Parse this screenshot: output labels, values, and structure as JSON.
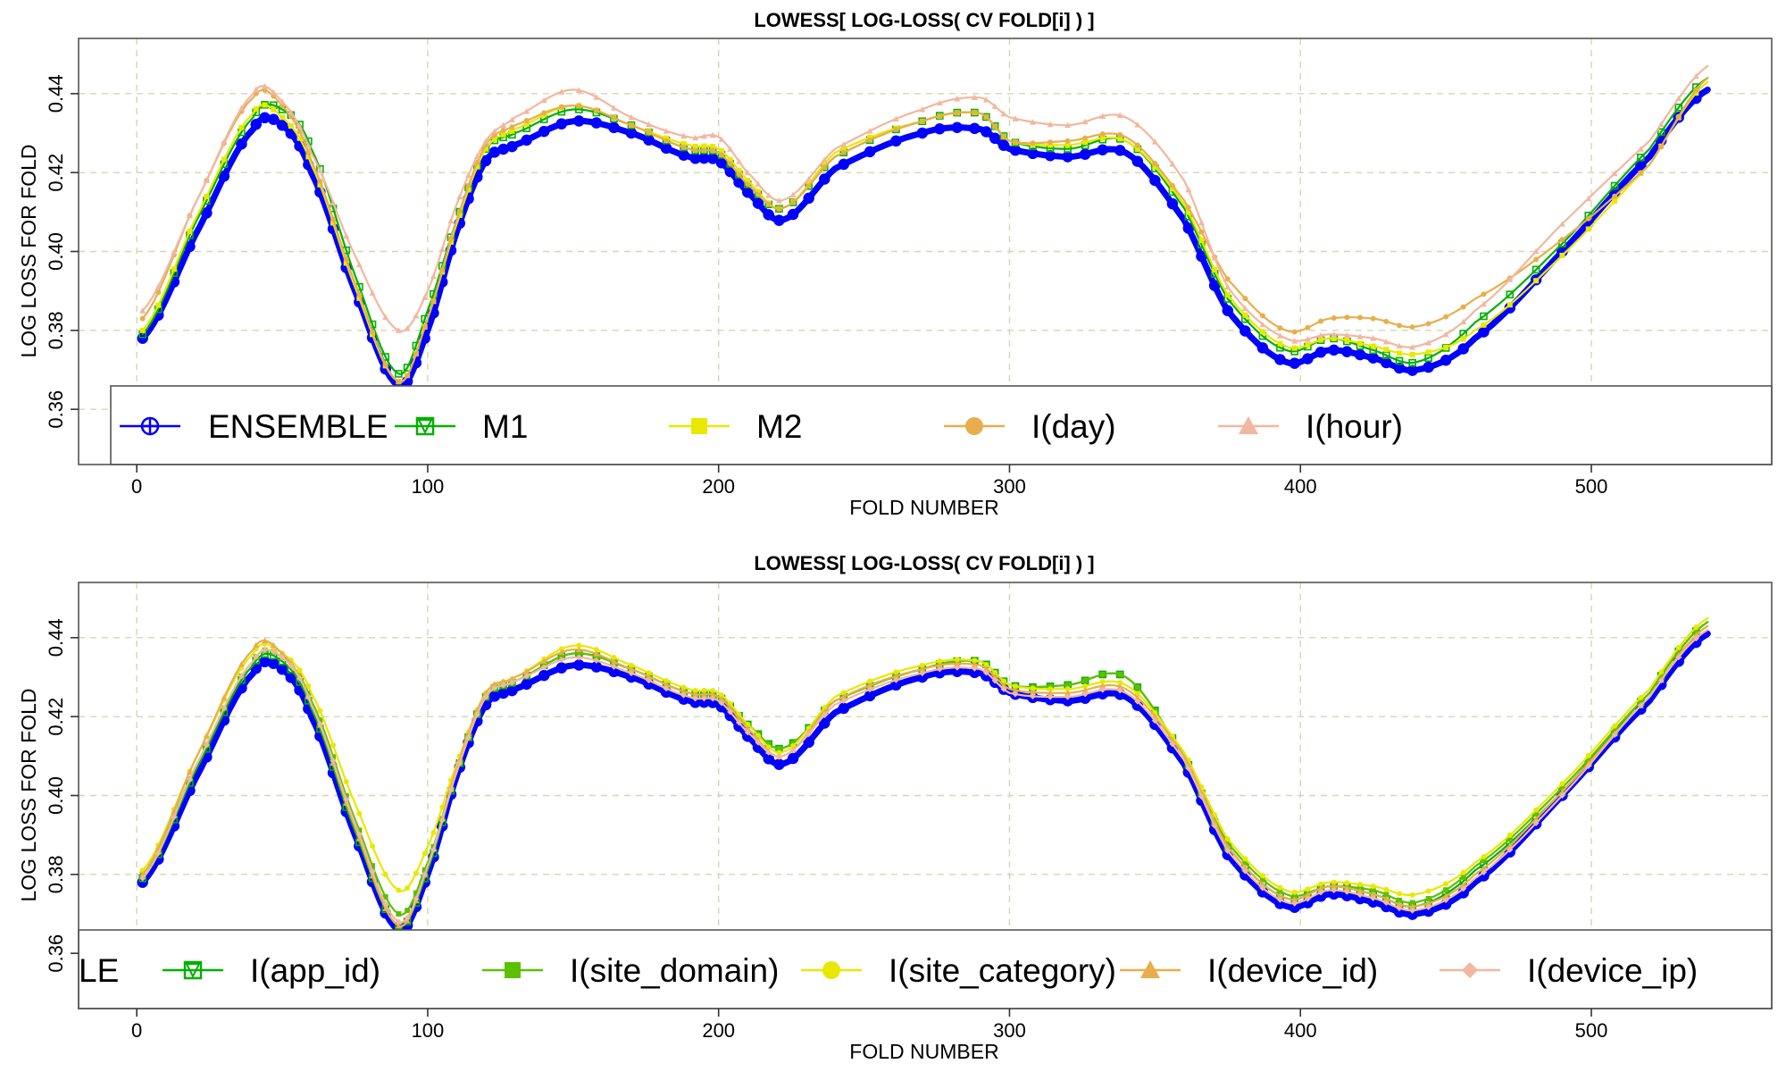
{
  "chart_data": [
    {
      "type": "line",
      "title": "LOWESS[ LOG-LOSS( CV FOLD[i] ) ]",
      "xlabel": "FOLD NUMBER",
      "ylabel": "LOG LOSS FOR FOLD",
      "xlim": [
        -20,
        562
      ],
      "ylim": [
        0.346,
        0.454
      ],
      "xticks": [
        0,
        100,
        200,
        300,
        400,
        500
      ],
      "yticks": [
        0.36,
        0.38,
        0.4,
        0.42,
        0.44
      ],
      "xtick_labels": [
        "0",
        "100",
        "200",
        "300",
        "400",
        "500"
      ],
      "ytick_labels": [
        "0.36",
        "0.38",
        "0.40",
        "0.42",
        "0.44"
      ],
      "grid": true,
      "legend_position": "bottom",
      "series": [
        {
          "name": "ENSEMBLE",
          "color": "#0000ff",
          "marker": "circle-plus",
          "x": [
            2,
            20,
            40,
            50,
            60,
            75,
            90,
            100,
            110,
            120,
            130,
            150,
            170,
            190,
            200,
            210,
            222,
            240,
            270,
            290,
            300,
            320,
            340,
            360,
            375,
            395,
            410,
            425,
            440,
            460,
            490,
            520,
            540
          ],
          "y": [
            0.378,
            0.404,
            0.431,
            0.432,
            0.42,
            0.39,
            0.366,
            0.38,
            0.405,
            0.423,
            0.427,
            0.433,
            0.43,
            0.424,
            0.423,
            0.415,
            0.408,
            0.421,
            0.43,
            0.431,
            0.426,
            0.424,
            0.425,
            0.408,
            0.385,
            0.372,
            0.375,
            0.373,
            0.37,
            0.378,
            0.4,
            0.424,
            0.441
          ]
        },
        {
          "name": "M1",
          "color": "#00b000",
          "marker": "triangle-down-box",
          "x": [
            2,
            20,
            40,
            50,
            60,
            75,
            90,
            100,
            110,
            120,
            130,
            150,
            170,
            190,
            200,
            210,
            222,
            240,
            270,
            290,
            300,
            320,
            340,
            360,
            375,
            395,
            410,
            425,
            440,
            460,
            490,
            520,
            540
          ],
          "y": [
            0.379,
            0.407,
            0.434,
            0.436,
            0.426,
            0.394,
            0.369,
            0.385,
            0.408,
            0.426,
            0.43,
            0.436,
            0.432,
            0.426,
            0.425,
            0.417,
            0.411,
            0.424,
            0.433,
            0.435,
            0.428,
            0.426,
            0.428,
            0.411,
            0.388,
            0.375,
            0.378,
            0.375,
            0.372,
            0.382,
            0.402,
            0.426,
            0.444
          ]
        },
        {
          "name": "M2",
          "color": "#e8e800",
          "marker": "square",
          "x": [
            2,
            20,
            40,
            50,
            60,
            75,
            90,
            100,
            110,
            120,
            130,
            150,
            170,
            190,
            200,
            210,
            222,
            240,
            270,
            290,
            300,
            320,
            340,
            360,
            375,
            395,
            410,
            425,
            440,
            460,
            490,
            520,
            540
          ],
          "y": [
            0.38,
            0.408,
            0.435,
            0.434,
            0.422,
            0.391,
            0.367,
            0.383,
            0.407,
            0.426,
            0.431,
            0.437,
            0.432,
            0.427,
            0.426,
            0.418,
            0.411,
            0.425,
            0.433,
            0.435,
            0.428,
            0.427,
            0.428,
            0.412,
            0.389,
            0.376,
            0.378,
            0.376,
            0.374,
            0.38,
            0.399,
            0.422,
            0.443
          ]
        },
        {
          "name": "I(day)",
          "color": "#e8ae4c",
          "marker": "circle",
          "x": [
            2,
            20,
            40,
            50,
            60,
            75,
            90,
            100,
            110,
            120,
            130,
            150,
            170,
            190,
            200,
            210,
            222,
            240,
            270,
            290,
            300,
            320,
            340,
            360,
            375,
            395,
            410,
            425,
            440,
            460,
            490,
            520,
            540
          ],
          "y": [
            0.383,
            0.412,
            0.439,
            0.437,
            0.423,
            0.392,
            0.367,
            0.383,
            0.408,
            0.427,
            0.432,
            0.437,
            0.432,
            0.426,
            0.425,
            0.417,
            0.411,
            0.424,
            0.433,
            0.435,
            0.428,
            0.428,
            0.429,
            0.413,
            0.393,
            0.38,
            0.383,
            0.383,
            0.381,
            0.388,
            0.403,
            0.422,
            0.444
          ]
        },
        {
          "name": "I(hour)",
          "color": "#f2b7a0",
          "marker": "triangle-up",
          "x": [
            2,
            20,
            40,
            50,
            60,
            75,
            90,
            100,
            110,
            120,
            130,
            150,
            170,
            190,
            200,
            210,
            222,
            240,
            270,
            290,
            300,
            320,
            340,
            360,
            375,
            395,
            410,
            425,
            440,
            460,
            490,
            520,
            540
          ],
          "y": [
            0.385,
            0.412,
            0.44,
            0.438,
            0.425,
            0.399,
            0.38,
            0.39,
            0.412,
            0.428,
            0.434,
            0.441,
            0.434,
            0.429,
            0.429,
            0.42,
            0.413,
            0.426,
            0.436,
            0.439,
            0.434,
            0.432,
            0.434,
            0.418,
            0.391,
            0.378,
            0.379,
            0.378,
            0.376,
            0.385,
            0.407,
            0.428,
            0.447
          ]
        }
      ]
    },
    {
      "type": "line",
      "title": "LOWESS[ LOG-LOSS( CV FOLD[i] ) ]",
      "xlabel": "FOLD NUMBER",
      "ylabel": "LOG LOSS FOR FOLD",
      "xlim": [
        -20,
        562
      ],
      "ylim": [
        0.346,
        0.454
      ],
      "xticks": [
        0,
        100,
        200,
        300,
        400,
        500
      ],
      "yticks": [
        0.36,
        0.38,
        0.4,
        0.42,
        0.44
      ],
      "xtick_labels": [
        "0",
        "100",
        "200",
        "300",
        "400",
        "500"
      ],
      "ytick_labels": [
        "0.36",
        "0.38",
        "0.40",
        "0.42",
        "0.44"
      ],
      "grid": true,
      "legend_position": "bottom",
      "legend_clipped_label": "LE",
      "series": [
        {
          "name": "",
          "color": "#0000ff",
          "marker": "circle-plus",
          "x": [
            2,
            20,
            40,
            50,
            60,
            75,
            90,
            100,
            110,
            120,
            130,
            150,
            170,
            190,
            200,
            210,
            222,
            240,
            270,
            290,
            300,
            320,
            340,
            360,
            375,
            395,
            410,
            425,
            440,
            460,
            490,
            520,
            540
          ],
          "y": [
            0.378,
            0.404,
            0.431,
            0.432,
            0.42,
            0.39,
            0.366,
            0.38,
            0.405,
            0.423,
            0.427,
            0.433,
            0.43,
            0.424,
            0.423,
            0.415,
            0.408,
            0.421,
            0.43,
            0.431,
            0.426,
            0.424,
            0.425,
            0.408,
            0.385,
            0.372,
            0.375,
            0.373,
            0.37,
            0.378,
            0.4,
            0.424,
            0.441
          ]
        },
        {
          "name": "I(app_id)",
          "color": "#00b000",
          "marker": "triangle-down-box",
          "x": [
            2,
            20,
            40,
            50,
            60,
            75,
            90,
            100,
            110,
            120,
            130,
            150,
            170,
            190,
            200,
            210,
            222,
            240,
            270,
            290,
            300,
            320,
            340,
            360,
            375,
            395,
            410,
            425,
            440,
            460,
            490,
            520,
            540
          ],
          "y": [
            0.379,
            0.406,
            0.433,
            0.434,
            0.422,
            0.391,
            0.367,
            0.381,
            0.406,
            0.425,
            0.429,
            0.436,
            0.432,
            0.426,
            0.425,
            0.418,
            0.412,
            0.424,
            0.432,
            0.434,
            0.428,
            0.428,
            0.43,
            0.41,
            0.387,
            0.374,
            0.377,
            0.375,
            0.372,
            0.381,
            0.401,
            0.426,
            0.444
          ]
        },
        {
          "name": "I(site_domain)",
          "color": "#5cc000",
          "marker": "square",
          "x": [
            2,
            20,
            40,
            50,
            60,
            75,
            90,
            100,
            110,
            120,
            130,
            150,
            170,
            190,
            200,
            210,
            222,
            240,
            270,
            290,
            300,
            320,
            340,
            360,
            375,
            395,
            410,
            425,
            440,
            460,
            490,
            520,
            540
          ],
          "y": [
            0.38,
            0.407,
            0.434,
            0.435,
            0.424,
            0.394,
            0.37,
            0.383,
            0.406,
            0.425,
            0.429,
            0.436,
            0.432,
            0.426,
            0.425,
            0.418,
            0.412,
            0.424,
            0.432,
            0.434,
            0.428,
            0.428,
            0.43,
            0.41,
            0.388,
            0.375,
            0.377,
            0.376,
            0.373,
            0.382,
            0.402,
            0.426,
            0.444
          ]
        },
        {
          "name": "I(site_category)",
          "color": "#e8e800",
          "marker": "circle",
          "x": [
            2,
            20,
            40,
            50,
            60,
            75,
            90,
            100,
            110,
            120,
            130,
            150,
            170,
            190,
            200,
            210,
            222,
            240,
            270,
            290,
            300,
            320,
            340,
            360,
            375,
            395,
            410,
            425,
            440,
            460,
            490,
            520,
            540
          ],
          "y": [
            0.381,
            0.409,
            0.436,
            0.436,
            0.426,
            0.398,
            0.376,
            0.387,
            0.408,
            0.426,
            0.43,
            0.438,
            0.433,
            0.427,
            0.426,
            0.418,
            0.411,
            0.425,
            0.433,
            0.434,
            0.428,
            0.427,
            0.428,
            0.411,
            0.389,
            0.376,
            0.378,
            0.377,
            0.375,
            0.383,
            0.403,
            0.427,
            0.445
          ]
        },
        {
          "name": "I(device_id)",
          "color": "#e8ae4c",
          "marker": "triangle-up",
          "x": [
            2,
            20,
            40,
            50,
            60,
            75,
            90,
            100,
            110,
            120,
            130,
            150,
            170,
            190,
            200,
            210,
            222,
            240,
            270,
            290,
            300,
            320,
            340,
            360,
            375,
            395,
            410,
            425,
            440,
            460,
            490,
            520,
            540
          ],
          "y": [
            0.38,
            0.409,
            0.437,
            0.436,
            0.423,
            0.392,
            0.367,
            0.382,
            0.407,
            0.426,
            0.43,
            0.437,
            0.432,
            0.426,
            0.425,
            0.417,
            0.41,
            0.424,
            0.432,
            0.433,
            0.427,
            0.426,
            0.427,
            0.41,
            0.387,
            0.374,
            0.377,
            0.375,
            0.372,
            0.38,
            0.401,
            0.425,
            0.443
          ]
        },
        {
          "name": "I(device_ip)",
          "color": "#f2b7a0",
          "marker": "diamond",
          "x": [
            2,
            20,
            40,
            50,
            60,
            75,
            90,
            100,
            110,
            120,
            130,
            150,
            170,
            190,
            200,
            210,
            222,
            240,
            270,
            290,
            300,
            320,
            340,
            360,
            375,
            395,
            410,
            425,
            440,
            460,
            490,
            520,
            540
          ],
          "y": [
            0.379,
            0.407,
            0.434,
            0.435,
            0.423,
            0.393,
            0.368,
            0.382,
            0.406,
            0.425,
            0.429,
            0.435,
            0.431,
            0.425,
            0.424,
            0.416,
            0.41,
            0.423,
            0.431,
            0.432,
            0.426,
            0.425,
            0.426,
            0.409,
            0.386,
            0.373,
            0.376,
            0.374,
            0.371,
            0.379,
            0.4,
            0.425,
            0.442
          ]
        }
      ]
    }
  ]
}
